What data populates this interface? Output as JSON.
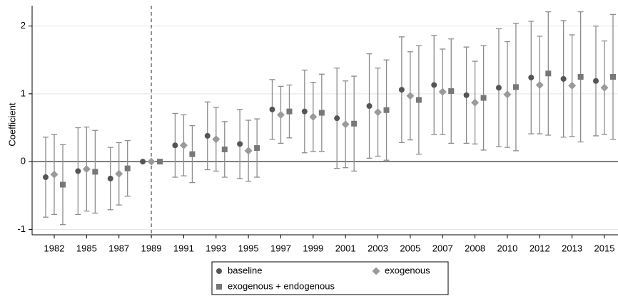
{
  "chart_data": {
    "type": "errorbar",
    "y_label": "Coefficient",
    "categories": [
      "1982",
      "1985",
      "1987",
      "1989",
      "1991",
      "1993",
      "1995",
      "1997",
      "1999",
      "2001",
      "2003",
      "2005",
      "2007",
      "2008",
      "2010",
      "2012",
      "2013",
      "2015"
    ],
    "series": [
      {
        "name": "baseline",
        "color": "#555555",
        "marker": "circle",
        "values": [
          -0.23,
          -0.14,
          -0.25,
          0,
          0.24,
          0.38,
          0.26,
          0.77,
          0.74,
          0.64,
          0.82,
          1.06,
          1.13,
          0.98,
          1.09,
          1.24,
          1.22,
          1.19
        ],
        "errors": [
          0.59,
          0.64,
          0.46,
          0,
          0.47,
          0.5,
          0.51,
          0.44,
          0.61,
          0.74,
          0.77,
          0.78,
          0.73,
          0.71,
          0.87,
          0.83,
          0.86,
          0.81
        ]
      },
      {
        "name": "exogenous",
        "color": "#9a9a9a",
        "marker": "diamond",
        "values": [
          -0.19,
          -0.11,
          -0.18,
          0,
          0.24,
          0.33,
          0.16,
          0.69,
          0.66,
          0.55,
          0.73,
          0.97,
          1.03,
          0.87,
          0.99,
          1.13,
          1.12,
          1.09
        ],
        "errors": [
          0.59,
          0.62,
          0.46,
          0,
          0.45,
          0.47,
          0.45,
          0.42,
          0.51,
          0.64,
          0.65,
          0.65,
          0.63,
          0.61,
          0.78,
          0.72,
          0.75,
          0.69
        ]
      },
      {
        "name": "exogenous + endogenous",
        "color": "#777777",
        "marker": "square",
        "values": [
          -0.34,
          -0.15,
          -0.1,
          0,
          0.11,
          0.18,
          0.2,
          0.74,
          0.72,
          0.56,
          0.76,
          0.91,
          1.04,
          0.94,
          1.1,
          1.3,
          1.25,
          1.25
        ],
        "errors": [
          0.59,
          0.61,
          0.41,
          0,
          0.42,
          0.41,
          0.43,
          0.39,
          0.57,
          0.7,
          0.74,
          0.8,
          0.77,
          0.77,
          0.94,
          0.91,
          0.96,
          0.92
        ]
      }
    ],
    "errorbar_color": "#8c8c8c",
    "ylim": [
      -1.08,
      2.3
    ],
    "yticks": [
      -1,
      0,
      1,
      2
    ],
    "grid": true,
    "zero_line": 0,
    "reference_category": 3,
    "legend_position": "bottom"
  }
}
